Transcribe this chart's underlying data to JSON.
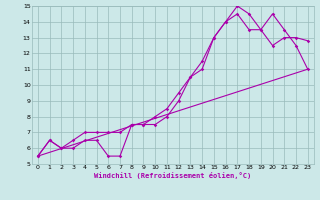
{
  "xlabel": "Windchill (Refroidissement éolien,°C)",
  "line1_x": [
    0,
    1,
    2,
    3,
    4,
    5,
    6,
    7,
    8,
    9,
    10,
    11,
    12,
    13,
    14,
    15,
    16,
    17,
    18,
    19,
    20,
    21,
    22,
    23
  ],
  "line1_y": [
    5.5,
    6.5,
    6.0,
    6.5,
    7.0,
    7.0,
    7.0,
    7.0,
    7.5,
    7.5,
    8.0,
    8.5,
    9.5,
    10.5,
    11.5,
    13.0,
    14.0,
    14.5,
    13.5,
    13.5,
    14.5,
    13.5,
    12.5,
    11.0
  ],
  "line2_x": [
    0,
    1,
    2,
    3,
    4,
    5,
    6,
    7,
    8,
    9,
    10,
    11,
    12,
    13,
    14,
    15,
    16,
    17,
    18,
    19,
    20,
    21,
    22,
    23
  ],
  "line2_y": [
    5.5,
    6.5,
    6.0,
    6.0,
    6.5,
    6.5,
    5.5,
    5.5,
    7.5,
    7.5,
    7.5,
    8.0,
    9.0,
    10.5,
    11.0,
    13.0,
    14.0,
    15.0,
    14.5,
    13.5,
    12.5,
    13.0,
    13.0,
    12.8
  ],
  "line3_x": [
    0,
    23
  ],
  "line3_y": [
    5.5,
    11.0
  ],
  "line_color": "#aa00aa",
  "bg_color": "#cce8e8",
  "grid_color": "#99bbbb",
  "xlim": [
    -0.5,
    23.5
  ],
  "ylim": [
    5,
    15
  ],
  "xticks": [
    0,
    1,
    2,
    3,
    4,
    5,
    6,
    7,
    8,
    9,
    10,
    11,
    12,
    13,
    14,
    15,
    16,
    17,
    18,
    19,
    20,
    21,
    22,
    23
  ],
  "yticks": [
    5,
    6,
    7,
    8,
    9,
    10,
    11,
    12,
    13,
    14,
    15
  ]
}
